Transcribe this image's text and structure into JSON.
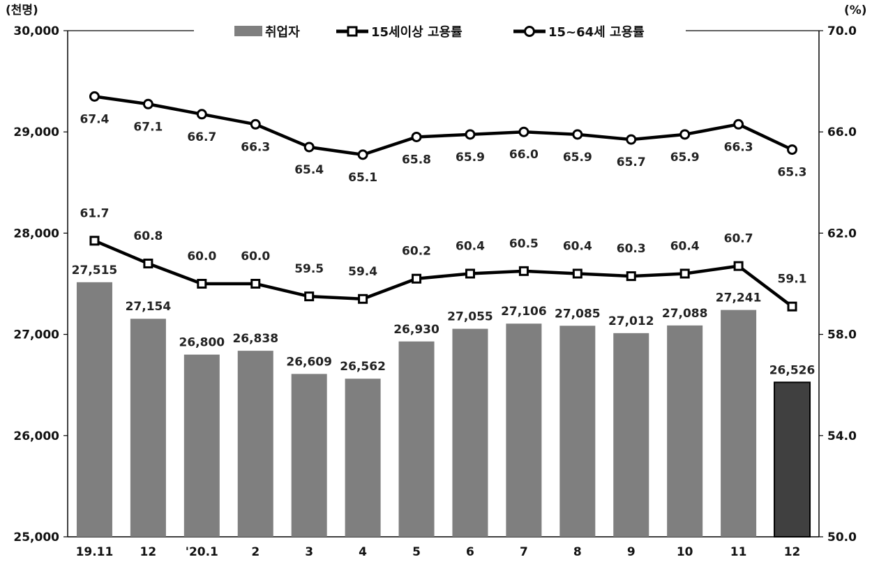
{
  "chart_data": {
    "type": "bar",
    "categories": [
      "19.11",
      "12",
      "'20.1",
      "2",
      "3",
      "4",
      "5",
      "6",
      "7",
      "8",
      "9",
      "10",
      "11",
      "12"
    ],
    "left_axis": {
      "unit": "(천명)",
      "ylim": [
        25000,
        30000
      ],
      "ticks": [
        "25,000",
        "26,000",
        "27,000",
        "28,000",
        "29,000",
        "30,000"
      ]
    },
    "right_axis": {
      "unit": "(%)",
      "ylim": [
        50.0,
        70.0
      ],
      "ticks": [
        "50.0",
        "54.0",
        "58.0",
        "62.0",
        "66.0",
        "70.0"
      ]
    },
    "series": [
      {
        "name": "취업자",
        "kind": "bar",
        "axis": "left",
        "values": [
          27515,
          27154,
          26800,
          26838,
          26609,
          26562,
          26930,
          27055,
          27106,
          27085,
          27012,
          27088,
          27241,
          26526
        ],
        "labels": [
          "27,515",
          "27,154",
          "26,800",
          "26,838",
          "26,609",
          "26,562",
          "26,930",
          "27,055",
          "27,106",
          "27,085",
          "27,012",
          "27,088",
          "27,241",
          "26,526"
        ],
        "color": "#7f7f7f",
        "highlight_color": "#404040"
      },
      {
        "name": "15세이상 고용률",
        "kind": "line",
        "marker": "square",
        "axis": "right",
        "values": [
          61.7,
          60.8,
          60.0,
          60.0,
          59.5,
          59.4,
          60.2,
          60.4,
          60.5,
          60.4,
          60.3,
          60.4,
          60.7,
          59.1
        ],
        "labels": [
          "61.7",
          "60.8",
          "60.0",
          "60.0",
          "59.5",
          "59.4",
          "60.2",
          "60.4",
          "60.5",
          "60.4",
          "60.3",
          "60.4",
          "60.7",
          "59.1"
        ],
        "color": "#000000"
      },
      {
        "name": "15~64세 고용률",
        "kind": "line",
        "marker": "circle",
        "axis": "right",
        "values": [
          67.4,
          67.1,
          66.7,
          66.3,
          65.4,
          65.1,
          65.8,
          65.9,
          66.0,
          65.9,
          65.7,
          65.9,
          66.3,
          65.3
        ],
        "labels": [
          "67.4",
          "67.1",
          "66.7",
          "66.3",
          "65.4",
          "65.1",
          "65.8",
          "65.9",
          "66.0",
          "65.9",
          "65.7",
          "65.9",
          "66.3",
          "65.3"
        ],
        "color": "#000000"
      }
    ],
    "legend_position": "top-center",
    "grid": false
  }
}
